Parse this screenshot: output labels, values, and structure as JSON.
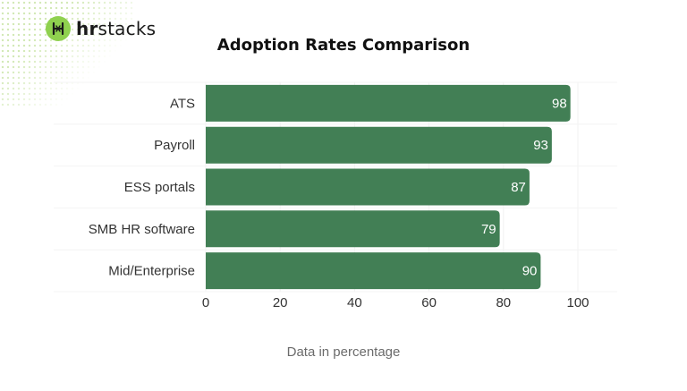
{
  "brand": {
    "name_bold": "hr",
    "name_rest": "stacks",
    "accent": "#8fd14f"
  },
  "chart_data": {
    "type": "bar",
    "orientation": "horizontal",
    "title": "Adoption Rates Comparison",
    "xlabel": "Data in percentage",
    "ylabel": "",
    "categories": [
      "ATS",
      "Payroll",
      "ESS portals",
      "SMB HR software",
      "Mid/Enterprise"
    ],
    "values": [
      98,
      93,
      87,
      79,
      90
    ],
    "xlim": [
      0,
      100
    ],
    "xticks": [
      0,
      20,
      40,
      60,
      80,
      100
    ],
    "data_labels": true,
    "grid": true,
    "legend": "none",
    "bar_color": "#427f55"
  }
}
